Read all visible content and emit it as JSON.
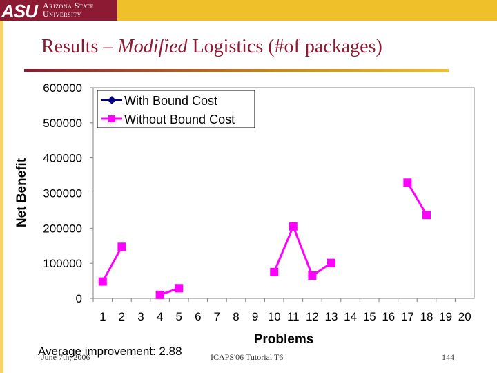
{
  "header": {
    "logo_mark": "ASU",
    "logo_line1": "Arizona State",
    "logo_line2": "University"
  },
  "slide": {
    "title_prefix": "Results – ",
    "title_italic": "Modified",
    "title_suffix": " Logistics (#of packages)",
    "note": "Average improvement: 2.88"
  },
  "footer": {
    "date": "June 7th, 2006",
    "center": "ICAPS'06 Tutorial T6",
    "page": "144"
  },
  "colors": {
    "with_bound": "#000080",
    "without_bound": "#ff00ff",
    "plot_bg": "#ffffff",
    "asu_maroon": "#8b1a32",
    "asu_gold": "#f0c02a"
  },
  "chart_data": {
    "type": "line",
    "xlabel": "Problems",
    "ylabel": "Net Benefit",
    "ylim": [
      0,
      600000
    ],
    "yticks": [
      0,
      100000,
      200000,
      300000,
      400000,
      500000,
      600000
    ],
    "categories": [
      1,
      2,
      3,
      4,
      5,
      6,
      7,
      8,
      9,
      10,
      11,
      12,
      13,
      14,
      15,
      16,
      17,
      18,
      19,
      20
    ],
    "legend_position": "top-left",
    "grid": false,
    "series": [
      {
        "name": "With Bound Cost",
        "marker": "diamond",
        "values": [
          null,
          null,
          null,
          null,
          null,
          null,
          null,
          null,
          null,
          null,
          null,
          null,
          null,
          null,
          null,
          null,
          null,
          null,
          null,
          null
        ]
      },
      {
        "name": "Without Bound Cost",
        "marker": "square",
        "values": [
          48000,
          147000,
          null,
          10000,
          29000,
          null,
          null,
          null,
          null,
          75000,
          205000,
          65000,
          101000,
          null,
          null,
          null,
          330000,
          238000,
          null,
          null
        ]
      }
    ]
  }
}
